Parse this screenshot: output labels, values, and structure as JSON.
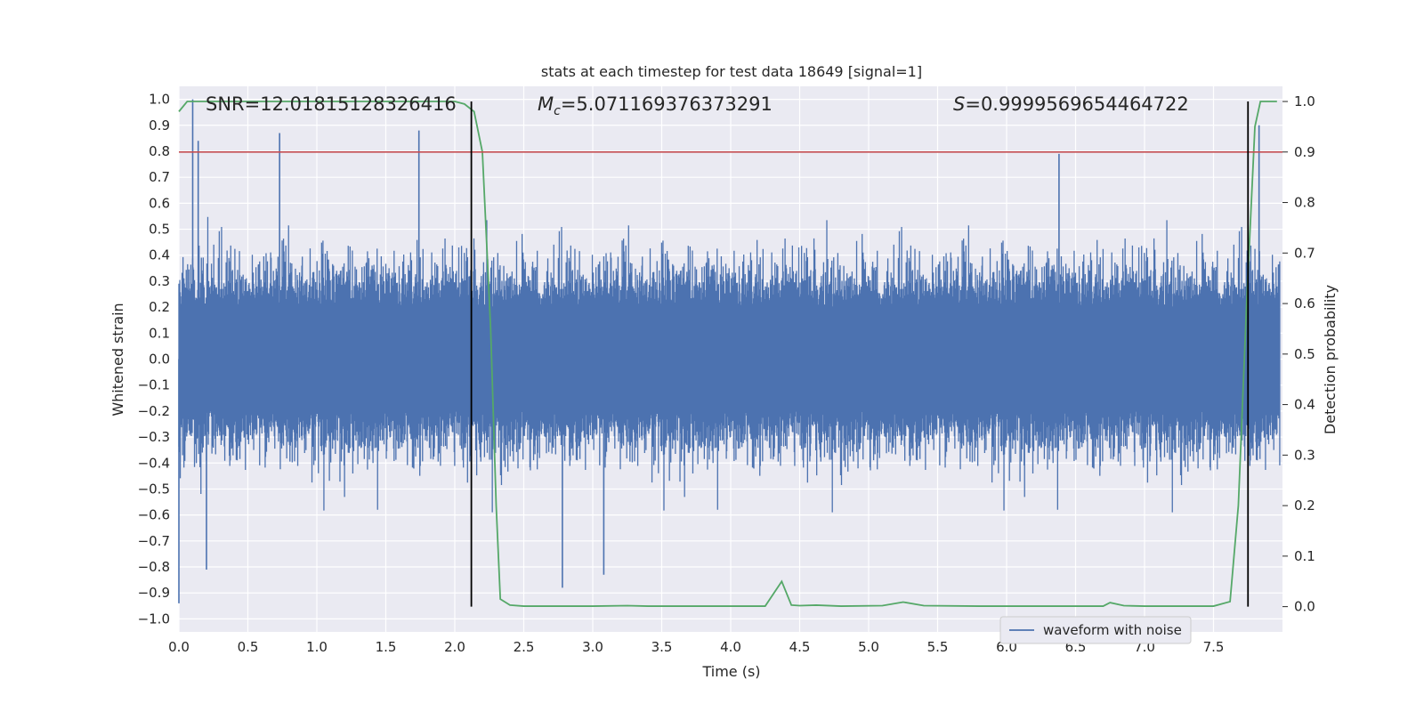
{
  "chart_data": {
    "type": "line",
    "title": "stats at each timestep for test data 18649 [signal=1]",
    "xlabel": "Time (s)",
    "ylabel": "Whitened strain",
    "y2label": "Detection probability",
    "xlim": [
      0.0,
      8.0
    ],
    "ylim": [
      -1.05,
      1.05
    ],
    "y2lim": [
      -0.05,
      1.03
    ],
    "x_ticks": [
      "0.0",
      "0.5",
      "1.0",
      "1.5",
      "2.0",
      "2.5",
      "3.0",
      "3.5",
      "4.0",
      "4.5",
      "5.0",
      "5.5",
      "6.0",
      "6.5",
      "7.0",
      "7.5"
    ],
    "y_ticks": [
      "1.0",
      "0.9",
      "0.8",
      "0.7",
      "0.6",
      "0.5",
      "0.4",
      "0.3",
      "0.2",
      "0.1",
      "0.0",
      "−0.1",
      "−0.2",
      "−0.3",
      "−0.4",
      "−0.5",
      "−0.6",
      "−0.7",
      "−0.8",
      "−0.9",
      "−1.0"
    ],
    "y2_ticks": [
      "1.0",
      "0.9",
      "0.8",
      "0.7",
      "0.6",
      "0.5",
      "0.4",
      "0.3",
      "0.2",
      "0.1",
      "0.0"
    ],
    "grid": true,
    "legend_position": "lower-right",
    "annotations": {
      "snr": "SNR=12.01815128326416",
      "mc_symbol": "M",
      "mc_subscript": "c",
      "mc_value": "=5.071169376373291",
      "s_symbol": "S",
      "s_value": "=0.9999569654464722"
    },
    "series": [
      {
        "name": "waveform with noise",
        "axis": "left",
        "color": "#4c72b0",
        "envelope_note": "dense noisy strain trace, roughly symmetric about 0 with amplitude ~±0.5 and occasional spikes",
        "peak_spikes": [
          {
            "x": 0.1,
            "y": 1.0
          },
          {
            "x": 0.14,
            "y": 0.84
          },
          {
            "x": 0.73,
            "y": 0.87
          },
          {
            "x": 1.74,
            "y": 0.88
          },
          {
            "x": 6.38,
            "y": 0.79
          },
          {
            "x": 7.83,
            "y": 0.9
          },
          {
            "x": 0.0,
            "y": -0.94
          },
          {
            "x": 0.2,
            "y": -0.81
          },
          {
            "x": 2.78,
            "y": -0.88
          },
          {
            "x": 3.08,
            "y": -0.83
          }
        ]
      },
      {
        "name": "",
        "axis": "right",
        "color": "#55a868",
        "x": [
          0.0,
          0.06,
          0.5,
          1.0,
          1.5,
          2.0,
          2.07,
          2.14,
          2.2,
          2.26,
          2.3,
          2.33,
          2.4,
          2.5,
          3.0,
          3.25,
          3.4,
          4.0,
          4.25,
          4.37,
          4.44,
          4.5,
          4.62,
          4.8,
          5.1,
          5.25,
          5.4,
          5.8,
          6.5,
          6.7,
          6.75,
          6.85,
          7.0,
          7.5,
          7.62,
          7.68,
          7.74,
          7.8,
          7.84,
          7.9,
          7.96
        ],
        "y": [
          0.98,
          1.0,
          1.0,
          1.0,
          1.0,
          1.0,
          0.995,
          0.98,
          0.9,
          0.55,
          0.2,
          0.015,
          0.003,
          0.001,
          0.001,
          0.002,
          0.001,
          0.001,
          0.001,
          0.05,
          0.003,
          0.002,
          0.003,
          0.001,
          0.002,
          0.009,
          0.002,
          0.001,
          0.001,
          0.001,
          0.008,
          0.002,
          0.001,
          0.001,
          0.01,
          0.2,
          0.6,
          0.95,
          1.0,
          1.0,
          1.0
        ]
      }
    ],
    "threshold": {
      "axis": "right",
      "y": 0.9,
      "color": "#c44e52"
    },
    "vertical_lines": [
      {
        "x": 2.12,
        "color": "#000000"
      },
      {
        "x": 7.75,
        "color": "#000000"
      }
    ]
  }
}
